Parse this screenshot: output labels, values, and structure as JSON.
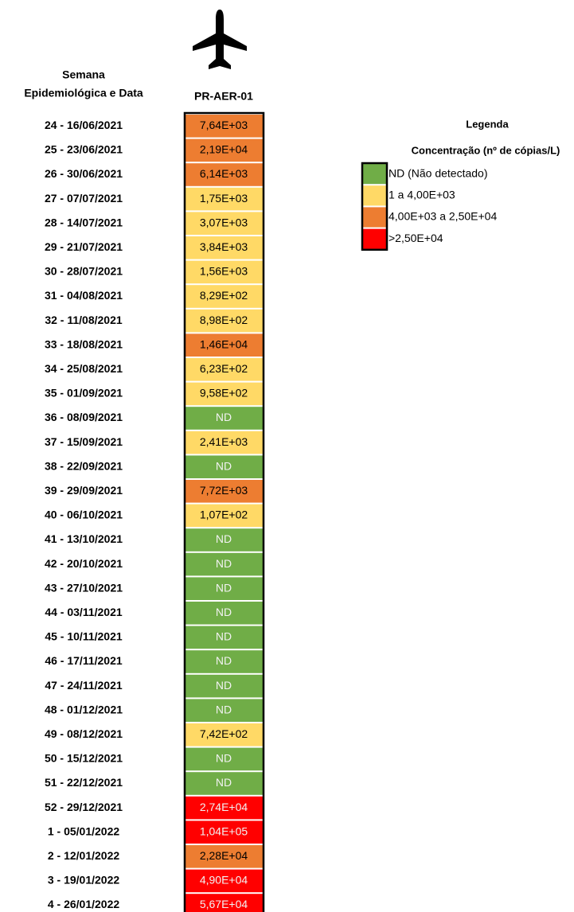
{
  "header": {
    "title_line1": "Semana",
    "title_line2": "Epidemiológica e Data",
    "column": "PR-AER-01"
  },
  "legend": {
    "title": "Legenda",
    "subtitle": "Concentração (nº de cópias/L)",
    "items": [
      {
        "label": "ND (Não detectado)",
        "color": "#70ad47"
      },
      {
        "label": "1 a 4,00E+03",
        "color": "#ffd966"
      },
      {
        "label": "4,00E+03 a 2,50E+04",
        "color": "#ed7d31"
      },
      {
        "label": ">2,50E+04",
        "color": "#ff0000"
      }
    ]
  },
  "table": {
    "rows": [
      {
        "label": "24 - 16/06/2021",
        "value": "7,64E+03",
        "color": "#ed7d31"
      },
      {
        "label": "25 - 23/06/2021",
        "value": "2,19E+04",
        "color": "#ed7d31"
      },
      {
        "label": "26 - 30/06/2021",
        "value": "6,14E+03",
        "color": "#ed7d31"
      },
      {
        "label": "27 - 07/07/2021",
        "value": "1,75E+03",
        "color": "#ffd966"
      },
      {
        "label": "28 - 14/07/2021",
        "value": "3,07E+03",
        "color": "#ffd966"
      },
      {
        "label": "29 - 21/07/2021",
        "value": "3,84E+03",
        "color": "#ffd966"
      },
      {
        "label": "30 - 28/07/2021",
        "value": "1,56E+03",
        "color": "#ffd966"
      },
      {
        "label": "31 - 04/08/2021",
        "value": "8,29E+02",
        "color": "#ffd966"
      },
      {
        "label": "32 - 11/08/2021",
        "value": "8,98E+02",
        "color": "#ffd966"
      },
      {
        "label": "33 - 18/08/2021",
        "value": "1,46E+04",
        "color": "#ed7d31"
      },
      {
        "label": "34 - 25/08/2021",
        "value": "6,23E+02",
        "color": "#ffd966"
      },
      {
        "label": "35 - 01/09/2021",
        "value": "9,58E+02",
        "color": "#ffd966"
      },
      {
        "label": "36 - 08/09/2021",
        "value": "ND",
        "color": "#70ad47"
      },
      {
        "label": "37 - 15/09/2021",
        "value": "2,41E+03",
        "color": "#ffd966"
      },
      {
        "label": "38 - 22/09/2021",
        "value": "ND",
        "color": "#70ad47"
      },
      {
        "label": "39 - 29/09/2021",
        "value": "7,72E+03",
        "color": "#ed7d31"
      },
      {
        "label": "40 - 06/10/2021",
        "value": "1,07E+02",
        "color": "#ffd966"
      },
      {
        "label": "41 - 13/10/2021",
        "value": "ND",
        "color": "#70ad47"
      },
      {
        "label": "42 - 20/10/2021",
        "value": "ND",
        "color": "#70ad47"
      },
      {
        "label": "43 - 27/10/2021",
        "value": "ND",
        "color": "#70ad47"
      },
      {
        "label": "44 - 03/11/2021",
        "value": "ND",
        "color": "#70ad47"
      },
      {
        "label": "45 - 10/11/2021",
        "value": "ND",
        "color": "#70ad47"
      },
      {
        "label": "46 - 17/11/2021",
        "value": "ND",
        "color": "#70ad47"
      },
      {
        "label": "47 - 24/11/2021",
        "value": "ND",
        "color": "#70ad47"
      },
      {
        "label": "48 - 01/12/2021",
        "value": "ND",
        "color": "#70ad47"
      },
      {
        "label": "49 - 08/12/2021",
        "value": "7,42E+02",
        "color": "#ffd966"
      },
      {
        "label": "50 - 15/12/2021",
        "value": "ND",
        "color": "#70ad47"
      },
      {
        "label": "51 - 22/12/2021",
        "value": "ND",
        "color": "#70ad47"
      },
      {
        "label": "52 - 29/12/2021",
        "value": "2,74E+04",
        "color": "#ff0000"
      },
      {
        "label": "1 - 05/01/2022",
        "value": "1,04E+05",
        "color": "#ff0000"
      },
      {
        "label": "2 - 12/01/2022",
        "value": "2,28E+04",
        "color": "#ed7d31"
      },
      {
        "label": "3 - 19/01/2022",
        "value": "4,90E+04",
        "color": "#ff0000"
      },
      {
        "label": "4 - 26/01/2022",
        "value": "5,67E+04",
        "color": "#ff0000"
      }
    ]
  }
}
